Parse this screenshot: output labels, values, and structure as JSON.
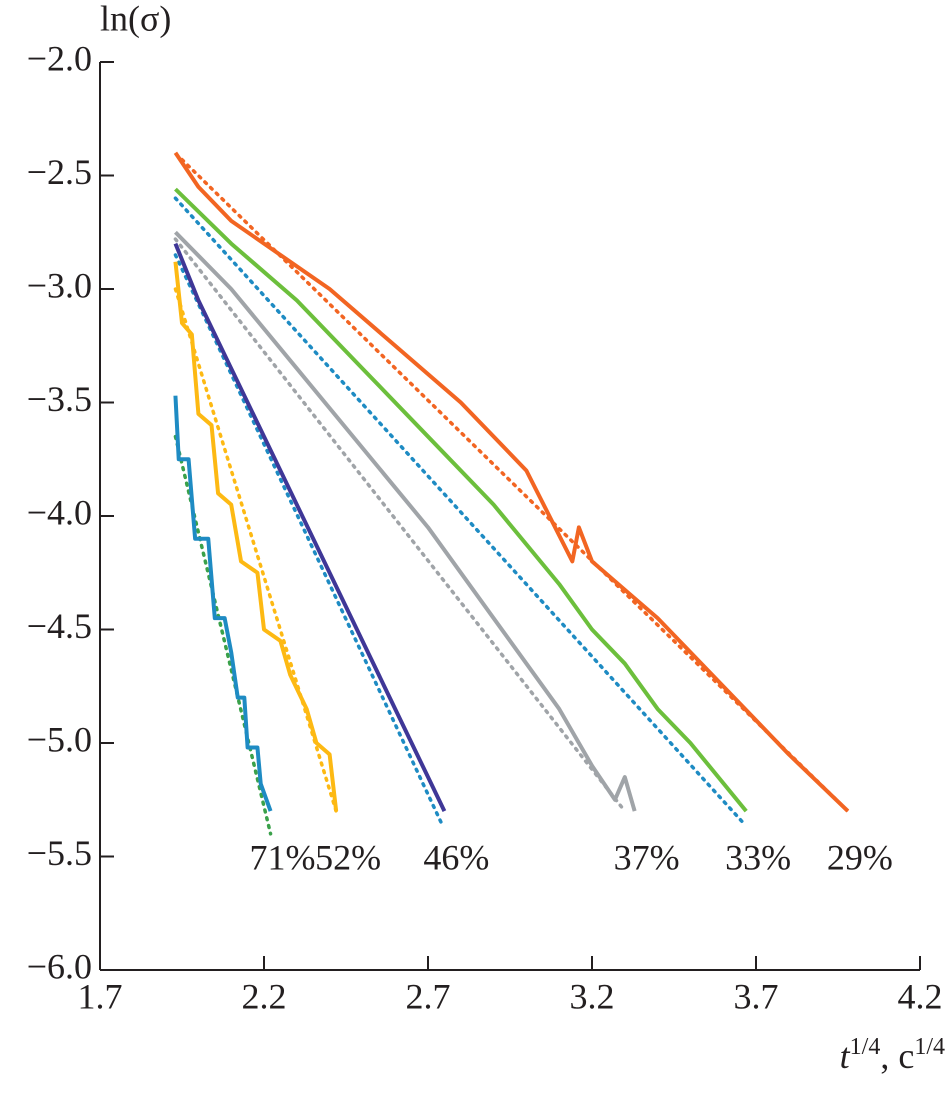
{
  "chart_data": {
    "type": "line",
    "y_label": "ln(σ)",
    "x_label": [
      "t",
      "1/4",
      ", c",
      "1/4"
    ],
    "xlim": [
      1.7,
      4.2
    ],
    "xticks": [
      1.7,
      2.2,
      2.7,
      3.2,
      3.7,
      4.2
    ],
    "ylim": [
      -6.0,
      -2.0
    ],
    "yticks": [
      {
        "value": -2.0,
        "label": "−2.0"
      },
      {
        "value": -2.5,
        "label": "−2.5"
      },
      {
        "value": -3.0,
        "label": "−3.0"
      },
      {
        "value": -3.5,
        "label": "−3.5"
      },
      {
        "value": -4.0,
        "label": "−4.0"
      },
      {
        "value": -4.5,
        "label": "−4.5"
      },
      {
        "value": -5.0,
        "label": "−5.0"
      },
      {
        "value": -5.5,
        "label": "−5.5"
      },
      {
        "value": -6.0,
        "label": "−6.0"
      }
    ],
    "series": [
      {
        "name": "29%",
        "color": "#f26522",
        "fit_color": "#f26522",
        "x": [
          1.93,
          2.0,
          2.1,
          2.2,
          2.4,
          2.6,
          2.8,
          3.0,
          3.14,
          3.16,
          3.2,
          3.4,
          3.6,
          3.8,
          3.98
        ],
        "values": [
          -2.4,
          -2.55,
          -2.7,
          -2.8,
          -3.0,
          -3.25,
          -3.5,
          -3.8,
          -4.2,
          -4.05,
          -4.2,
          -4.45,
          -4.75,
          -5.05,
          -5.3
        ],
        "fit_x": [
          1.95,
          3.98
        ],
        "fit_values": [
          -2.43,
          -5.3
        ]
      },
      {
        "name": "33%",
        "color": "#6cbf3c",
        "fit_color": "#1e8bc3",
        "x": [
          1.93,
          2.1,
          2.3,
          2.5,
          2.7,
          2.9,
          3.1,
          3.2,
          3.3,
          3.4,
          3.5,
          3.67
        ],
        "values": [
          -2.56,
          -2.8,
          -3.05,
          -3.35,
          -3.65,
          -3.95,
          -4.3,
          -4.5,
          -4.65,
          -4.85,
          -5.0,
          -5.3
        ],
        "fit_x": [
          1.93,
          3.66
        ],
        "fit_values": [
          -2.6,
          -5.35
        ]
      },
      {
        "name": "37%",
        "color": "#a0a4a8",
        "fit_color": "#a0a4a8",
        "x": [
          1.93,
          2.1,
          2.3,
          2.5,
          2.7,
          2.9,
          3.0,
          3.1,
          3.2,
          3.27,
          3.3,
          3.33
        ],
        "values": [
          -2.75,
          -3.0,
          -3.35,
          -3.7,
          -4.05,
          -4.45,
          -4.65,
          -4.85,
          -5.1,
          -5.25,
          -5.15,
          -5.3
        ],
        "fit_x": [
          1.93,
          3.3
        ],
        "fit_values": [
          -2.78,
          -5.3
        ]
      },
      {
        "name": "46%",
        "color": "#3f3797",
        "fit_color": "#1e8bc3",
        "x": [
          1.93,
          2.0,
          2.1,
          2.2,
          2.3,
          2.4,
          2.5,
          2.6,
          2.7,
          2.75
        ],
        "values": [
          -2.8,
          -3.05,
          -3.35,
          -3.65,
          -3.95,
          -4.25,
          -4.55,
          -4.85,
          -5.15,
          -5.3
        ],
        "fit_x": [
          1.93,
          2.74
        ],
        "fit_values": [
          -2.85,
          -5.35
        ]
      },
      {
        "name": "52%",
        "color": "#fdb913",
        "fit_color": "#fdb913",
        "x": [
          1.93,
          1.95,
          1.98,
          2.0,
          2.04,
          2.06,
          2.1,
          2.13,
          2.18,
          2.2,
          2.25,
          2.28,
          2.33,
          2.36,
          2.4,
          2.42
        ],
        "values": [
          -2.88,
          -3.15,
          -3.2,
          -3.55,
          -3.6,
          -3.9,
          -3.95,
          -4.2,
          -4.25,
          -4.5,
          -4.55,
          -4.7,
          -4.85,
          -5.0,
          -5.05,
          -5.3
        ],
        "fit_x": [
          1.93,
          2.42
        ],
        "fit_values": [
          -3.0,
          -5.3
        ]
      },
      {
        "name": "71%",
        "color": "#1e8bc3",
        "fit_color": "#3aa14a",
        "x": [
          1.93,
          1.94,
          1.97,
          1.99,
          2.03,
          2.05,
          2.08,
          2.1,
          2.12,
          2.14,
          2.15,
          2.18,
          2.19,
          2.22
        ],
        "values": [
          -3.47,
          -3.75,
          -3.75,
          -4.1,
          -4.1,
          -4.45,
          -4.45,
          -4.6,
          -4.8,
          -4.8,
          -5.02,
          -5.02,
          -5.18,
          -5.3
        ],
        "fit_x": [
          1.93,
          2.22
        ],
        "fit_values": [
          -3.65,
          -5.4
        ]
      }
    ]
  }
}
